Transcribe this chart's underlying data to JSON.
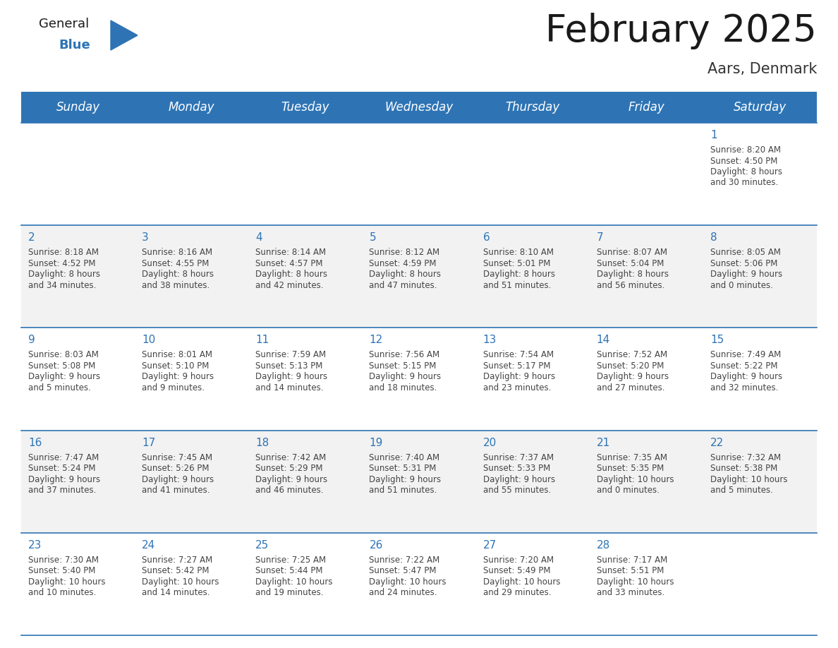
{
  "title": "February 2025",
  "subtitle": "Aars, Denmark",
  "header_color": "#2E74B5",
  "header_text_color": "#FFFFFF",
  "cell_bg_row0": "#FFFFFF",
  "cell_bg_odd": "#F2F2F2",
  "cell_bg_even": "#FFFFFF",
  "day_headers": [
    "Sunday",
    "Monday",
    "Tuesday",
    "Wednesday",
    "Thursday",
    "Friday",
    "Saturday"
  ],
  "title_fontsize": 38,
  "subtitle_fontsize": 15,
  "header_fontsize": 12,
  "day_num_fontsize": 11,
  "info_fontsize": 8.5,
  "days": [
    {
      "day": 1,
      "col": 6,
      "row": 0,
      "sunrise": "8:20 AM",
      "sunset": "4:50 PM",
      "daylight_h": "8 hours",
      "daylight_m": "and 30 minutes."
    },
    {
      "day": 2,
      "col": 0,
      "row": 1,
      "sunrise": "8:18 AM",
      "sunset": "4:52 PM",
      "daylight_h": "8 hours",
      "daylight_m": "and 34 minutes."
    },
    {
      "day": 3,
      "col": 1,
      "row": 1,
      "sunrise": "8:16 AM",
      "sunset": "4:55 PM",
      "daylight_h": "8 hours",
      "daylight_m": "and 38 minutes."
    },
    {
      "day": 4,
      "col": 2,
      "row": 1,
      "sunrise": "8:14 AM",
      "sunset": "4:57 PM",
      "daylight_h": "8 hours",
      "daylight_m": "and 42 minutes."
    },
    {
      "day": 5,
      "col": 3,
      "row": 1,
      "sunrise": "8:12 AM",
      "sunset": "4:59 PM",
      "daylight_h": "8 hours",
      "daylight_m": "and 47 minutes."
    },
    {
      "day": 6,
      "col": 4,
      "row": 1,
      "sunrise": "8:10 AM",
      "sunset": "5:01 PM",
      "daylight_h": "8 hours",
      "daylight_m": "and 51 minutes."
    },
    {
      "day": 7,
      "col": 5,
      "row": 1,
      "sunrise": "8:07 AM",
      "sunset": "5:04 PM",
      "daylight_h": "8 hours",
      "daylight_m": "and 56 minutes."
    },
    {
      "day": 8,
      "col": 6,
      "row": 1,
      "sunrise": "8:05 AM",
      "sunset": "5:06 PM",
      "daylight_h": "9 hours",
      "daylight_m": "and 0 minutes."
    },
    {
      "day": 9,
      "col": 0,
      "row": 2,
      "sunrise": "8:03 AM",
      "sunset": "5:08 PM",
      "daylight_h": "9 hours",
      "daylight_m": "and 5 minutes."
    },
    {
      "day": 10,
      "col": 1,
      "row": 2,
      "sunrise": "8:01 AM",
      "sunset": "5:10 PM",
      "daylight_h": "9 hours",
      "daylight_m": "and 9 minutes."
    },
    {
      "day": 11,
      "col": 2,
      "row": 2,
      "sunrise": "7:59 AM",
      "sunset": "5:13 PM",
      "daylight_h": "9 hours",
      "daylight_m": "and 14 minutes."
    },
    {
      "day": 12,
      "col": 3,
      "row": 2,
      "sunrise": "7:56 AM",
      "sunset": "5:15 PM",
      "daylight_h": "9 hours",
      "daylight_m": "and 18 minutes."
    },
    {
      "day": 13,
      "col": 4,
      "row": 2,
      "sunrise": "7:54 AM",
      "sunset": "5:17 PM",
      "daylight_h": "9 hours",
      "daylight_m": "and 23 minutes."
    },
    {
      "day": 14,
      "col": 5,
      "row": 2,
      "sunrise": "7:52 AM",
      "sunset": "5:20 PM",
      "daylight_h": "9 hours",
      "daylight_m": "and 27 minutes."
    },
    {
      "day": 15,
      "col": 6,
      "row": 2,
      "sunrise": "7:49 AM",
      "sunset": "5:22 PM",
      "daylight_h": "9 hours",
      "daylight_m": "and 32 minutes."
    },
    {
      "day": 16,
      "col": 0,
      "row": 3,
      "sunrise": "7:47 AM",
      "sunset": "5:24 PM",
      "daylight_h": "9 hours",
      "daylight_m": "and 37 minutes."
    },
    {
      "day": 17,
      "col": 1,
      "row": 3,
      "sunrise": "7:45 AM",
      "sunset": "5:26 PM",
      "daylight_h": "9 hours",
      "daylight_m": "and 41 minutes."
    },
    {
      "day": 18,
      "col": 2,
      "row": 3,
      "sunrise": "7:42 AM",
      "sunset": "5:29 PM",
      "daylight_h": "9 hours",
      "daylight_m": "and 46 minutes."
    },
    {
      "day": 19,
      "col": 3,
      "row": 3,
      "sunrise": "7:40 AM",
      "sunset": "5:31 PM",
      "daylight_h": "9 hours",
      "daylight_m": "and 51 minutes."
    },
    {
      "day": 20,
      "col": 4,
      "row": 3,
      "sunrise": "7:37 AM",
      "sunset": "5:33 PM",
      "daylight_h": "9 hours",
      "daylight_m": "and 55 minutes."
    },
    {
      "day": 21,
      "col": 5,
      "row": 3,
      "sunrise": "7:35 AM",
      "sunset": "5:35 PM",
      "daylight_h": "10 hours",
      "daylight_m": "and 0 minutes."
    },
    {
      "day": 22,
      "col": 6,
      "row": 3,
      "sunrise": "7:32 AM",
      "sunset": "5:38 PM",
      "daylight_h": "10 hours",
      "daylight_m": "and 5 minutes."
    },
    {
      "day": 23,
      "col": 0,
      "row": 4,
      "sunrise": "7:30 AM",
      "sunset": "5:40 PM",
      "daylight_h": "10 hours",
      "daylight_m": "and 10 minutes."
    },
    {
      "day": 24,
      "col": 1,
      "row": 4,
      "sunrise": "7:27 AM",
      "sunset": "5:42 PM",
      "daylight_h": "10 hours",
      "daylight_m": "and 14 minutes."
    },
    {
      "day": 25,
      "col": 2,
      "row": 4,
      "sunrise": "7:25 AM",
      "sunset": "5:44 PM",
      "daylight_h": "10 hours",
      "daylight_m": "and 19 minutes."
    },
    {
      "day": 26,
      "col": 3,
      "row": 4,
      "sunrise": "7:22 AM",
      "sunset": "5:47 PM",
      "daylight_h": "10 hours",
      "daylight_m": "and 24 minutes."
    },
    {
      "day": 27,
      "col": 4,
      "row": 4,
      "sunrise": "7:20 AM",
      "sunset": "5:49 PM",
      "daylight_h": "10 hours",
      "daylight_m": "and 29 minutes."
    },
    {
      "day": 28,
      "col": 5,
      "row": 4,
      "sunrise": "7:17 AM",
      "sunset": "5:51 PM",
      "daylight_h": "10 hours",
      "daylight_m": "and 33 minutes."
    }
  ]
}
